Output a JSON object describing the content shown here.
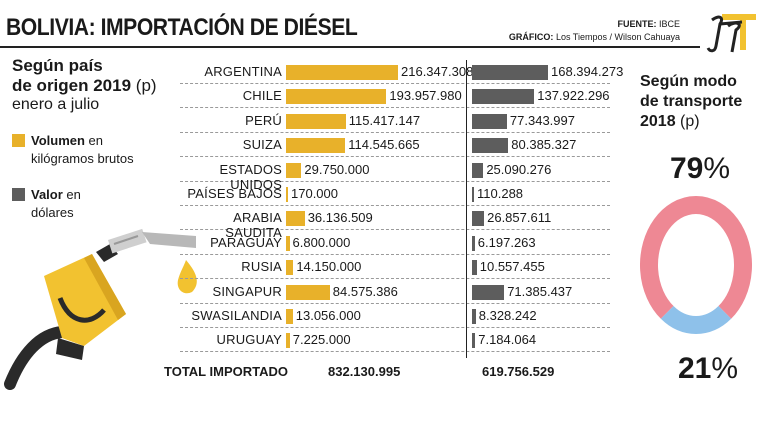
{
  "header": {
    "title": "BOLIVIA: IMPORTACIÓN DE DIÉSEL",
    "source_label": "FUENTE:",
    "source_value": "IBCE",
    "credit_label": "GRÁFICO:",
    "credit_value": "Los Tiempos / Wilson Cahuaya"
  },
  "left_panel": {
    "heading_line1": "Según país",
    "heading_line2": "de origen 2019",
    "heading_p": "(p)",
    "subheading": "enero a julio",
    "legend": [
      {
        "bold": "Volumen",
        "rest": " en",
        "line2": "kilógramos brutos",
        "color": "#e8b12a"
      },
      {
        "bold": "Valor",
        "rest": " en",
        "line2": "dólares",
        "color": "#5d5d5d"
      }
    ]
  },
  "chart_data": {
    "type": "bar",
    "categories": [
      "ARGENTINA",
      "CHILE",
      "PERÚ",
      "SUIZA",
      "ESTADOS UNIDOS",
      "PAÍSES BAJOS",
      "ARABIA SAUDITA",
      "PARAGUAY",
      "RUSIA",
      "SINGAPUR",
      "SWASILANDIA",
      "URUGUAY"
    ],
    "series": [
      {
        "name": "Volumen en kilógramos brutos",
        "color": "#e8b12a",
        "values": [
          216347308,
          193957980,
          115417147,
          114545665,
          29750000,
          170000,
          36136509,
          6800000,
          14150000,
          84575386,
          13056000,
          7225000
        ],
        "labels": [
          "216.347.308",
          "193.957.980",
          "115.417.147",
          "114.545.665",
          "29.750.000",
          "170.000",
          "36.136.509",
          "6.800.000",
          "14.150.000",
          "84.575.386",
          "13.056.000",
          "7.225.000"
        ]
      },
      {
        "name": "Valor en dólares",
        "color": "#5d5d5d",
        "values": [
          168394273,
          137922296,
          77343997,
          80385327,
          25090276,
          110288,
          26857611,
          6197263,
          10557455,
          71385437,
          8328242,
          7184064
        ],
        "labels": [
          "168.394.273",
          "137.922.296",
          "77.343.997",
          "80.385.327",
          "25.090.276",
          "110.288",
          "26.857.611",
          "6.197.263",
          "10.557.455",
          "71.385.437",
          "8.328.242",
          "7.184.064"
        ]
      }
    ],
    "totals": {
      "label": "TOTAL IMPORTADO",
      "volume": "832.130.995",
      "value": "619.756.529"
    }
  },
  "right_panel": {
    "heading_line1": "Según modo",
    "heading_line2": "de transporte",
    "heading_line3": "2018",
    "heading_p": "(p)",
    "donut": {
      "segments": [
        {
          "value": 79,
          "color": "#ee8894"
        },
        {
          "value": 21,
          "color": "#8ec1ea"
        }
      ],
      "top_value": "79",
      "bottom_value": "21",
      "sign": "%"
    }
  }
}
